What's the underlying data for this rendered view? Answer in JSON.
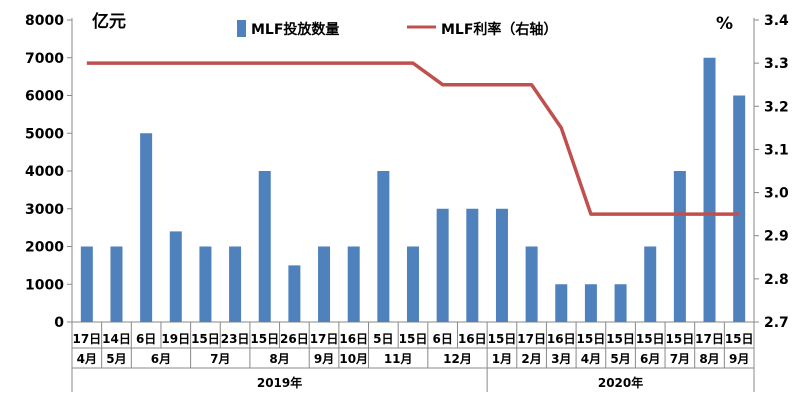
{
  "chart_data": {
    "type": "bar+line",
    "y_left_unit": "亿元",
    "y_right_unit": "%",
    "y_left_range": [
      0,
      8000
    ],
    "y_left_ticks": [
      "0",
      "1000",
      "2000",
      "3000",
      "4000",
      "5000",
      "6000",
      "7000",
      "8000"
    ],
    "y_right_range": [
      2.7,
      3.4
    ],
    "y_right_ticks": [
      "2.7",
      "2.8",
      "2.9",
      "3.0",
      "3.1",
      "3.2",
      "3.3",
      "3.4"
    ],
    "legend": [
      {
        "name": "MLF投放数量",
        "color": "#4f81bd",
        "kind": "bar"
      },
      {
        "name": "MLF利率（右轴）",
        "color": "#c0504d",
        "kind": "line"
      }
    ],
    "categories": [
      "17日",
      "14日",
      "6日",
      "19日",
      "15日",
      "23日",
      "15日",
      "26日",
      "17日",
      "16日",
      "5日",
      "15日",
      "6日",
      "16日",
      "15日",
      "17日",
      "16日",
      "15日",
      "15日",
      "15日",
      "15日",
      "17日",
      "15日"
    ],
    "months": [
      {
        "label": "4月",
        "span": 1
      },
      {
        "label": "5月",
        "span": 1
      },
      {
        "label": "6月",
        "span": 2
      },
      {
        "label": "7月",
        "span": 2
      },
      {
        "label": "8月",
        "span": 2
      },
      {
        "label": "9月",
        "span": 1
      },
      {
        "label": "10月",
        "span": 1
      },
      {
        "label": "11月",
        "span": 2
      },
      {
        "label": "12月",
        "span": 2
      },
      {
        "label": "1月",
        "span": 1
      },
      {
        "label": "2月",
        "span": 1
      },
      {
        "label": "3月",
        "span": 1
      },
      {
        "label": "4月",
        "span": 1
      },
      {
        "label": "5月",
        "span": 1
      },
      {
        "label": "6月",
        "span": 1
      },
      {
        "label": "7月",
        "span": 1
      },
      {
        "label": "8月",
        "span": 1
      },
      {
        "label": "9月",
        "span": 1
      }
    ],
    "years": [
      {
        "label": "2019年",
        "span": 14
      },
      {
        "label": "2020年",
        "span": 9
      }
    ],
    "series": [
      {
        "name": "MLF投放数量",
        "axis": "left",
        "type": "bar",
        "values": [
          2000,
          2000,
          5000,
          2400,
          2000,
          2000,
          4000,
          1500,
          2000,
          2000,
          4000,
          2000,
          3000,
          3000,
          3000,
          2000,
          1000,
          1000,
          1000,
          2000,
          4000,
          7000,
          6000
        ]
      },
      {
        "name": "MLF利率（右轴）",
        "axis": "right",
        "type": "line",
        "values": [
          3.3,
          3.3,
          3.3,
          3.3,
          3.3,
          3.3,
          3.3,
          3.3,
          3.3,
          3.3,
          3.3,
          3.3,
          3.25,
          3.25,
          3.25,
          3.25,
          3.15,
          2.95,
          2.95,
          2.95,
          2.95,
          2.95,
          2.95
        ]
      }
    ]
  }
}
